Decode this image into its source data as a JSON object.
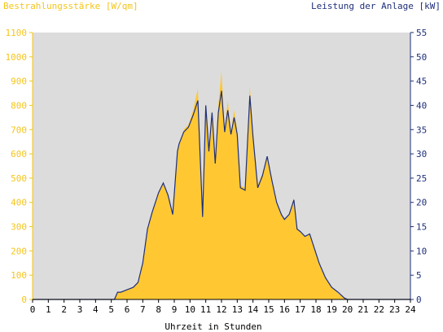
{
  "chart_data": {
    "type": "area",
    "ylabel_left": "Bestrahlungsstärke [W/qm]",
    "ylabel_right": "Leistung der Anlage [kW]",
    "xlabel": "Uhrzeit in Stunden",
    "xlim": [
      0,
      24
    ],
    "ylim_left": [
      0,
      1100
    ],
    "ylim_right": [
      0,
      55
    ],
    "x_ticks": [
      "0",
      "1",
      "2",
      "3",
      "4",
      "5",
      "6",
      "7",
      "8",
      "9",
      "10",
      "11",
      "12",
      "13",
      "14",
      "15",
      "16",
      "17",
      "18",
      "19",
      "20",
      "21",
      "22",
      "23",
      "24"
    ],
    "y_left_ticks": [
      "0",
      "100",
      "200",
      "300",
      "400",
      "500",
      "600",
      "700",
      "800",
      "900",
      "1000",
      "1100"
    ],
    "y_right_ticks": [
      "0",
      "5",
      "10",
      "15",
      "20",
      "25",
      "30",
      "35",
      "40",
      "45",
      "50",
      "55"
    ],
    "colors": {
      "irradiance": "#ffc833",
      "power": "#1f2f7a",
      "plot_bg": "#dcdcdc",
      "left_axis": "#f5c518",
      "right_axis": "#1f2f7a"
    },
    "series": [
      {
        "name": "Bestrahlungsstärke [W/qm]",
        "axis": "left",
        "x": [
          0,
          5,
          5.2,
          5.4,
          5.6,
          6.0,
          6.4,
          6.7,
          7.0,
          7.3,
          7.6,
          8.0,
          8.3,
          8.6,
          8.9,
          9.2,
          9.3,
          9.6,
          9.9,
          10.2,
          10.5,
          10.8,
          11.0,
          11.2,
          11.4,
          11.6,
          11.8,
          12.0,
          12.2,
          12.4,
          12.6,
          12.8,
          13.0,
          13.2,
          13.5,
          13.8,
          14.0,
          14.3,
          14.6,
          14.9,
          15.2,
          15.5,
          15.8,
          16.0,
          16.3,
          16.6,
          16.8,
          17.0,
          17.3,
          17.6,
          17.9,
          18.2,
          18.6,
          19.0,
          19.4,
          19.8,
          20,
          24
        ],
        "y": [
          0,
          0,
          0,
          30,
          30,
          40,
          50,
          70,
          150,
          290,
          360,
          440,
          480,
          430,
          350,
          610,
          640,
          700,
          720,
          780,
          870,
          340,
          810,
          620,
          780,
          570,
          800,
          940,
          700,
          820,
          690,
          780,
          700,
          470,
          460,
          880,
          680,
          470,
          520,
          580,
          490,
          400,
          350,
          330,
          350,
          420,
          290,
          280,
          260,
          270,
          210,
          150,
          90,
          50,
          25,
          5,
          0,
          0
        ]
      },
      {
        "name": "Leistung der Anlage [kW]",
        "axis": "right",
        "x": [
          0,
          5,
          5.2,
          5.4,
          5.6,
          6.0,
          6.4,
          6.7,
          7.0,
          7.3,
          7.6,
          8.0,
          8.3,
          8.6,
          8.9,
          9.2,
          9.3,
          9.6,
          9.9,
          10.2,
          10.5,
          10.8,
          11.0,
          11.2,
          11.4,
          11.6,
          11.8,
          12.0,
          12.2,
          12.4,
          12.6,
          12.8,
          13.0,
          13.2,
          13.5,
          13.8,
          14.0,
          14.3,
          14.6,
          14.9,
          15.2,
          15.5,
          15.8,
          16.0,
          16.3,
          16.6,
          16.8,
          17.0,
          17.3,
          17.6,
          17.9,
          18.2,
          18.6,
          19.0,
          19.4,
          19.8,
          20,
          24
        ],
        "y": [
          0,
          0,
          0,
          1.5,
          1.5,
          2,
          2.5,
          3.5,
          7.5,
          14.5,
          18,
          22,
          24,
          21.5,
          17.5,
          30.5,
          32,
          34.5,
          35.5,
          38,
          41,
          17,
          40,
          30.5,
          38.5,
          28,
          38.5,
          43,
          34.5,
          39,
          34,
          37.5,
          34,
          23,
          22.5,
          42,
          33.5,
          23,
          25.5,
          29.5,
          24.5,
          20,
          17.5,
          16.5,
          17.5,
          20.5,
          14.5,
          14,
          13,
          13.5,
          10.5,
          7.5,
          4.5,
          2.5,
          1.5,
          0.3,
          0,
          0
        ]
      }
    ]
  }
}
